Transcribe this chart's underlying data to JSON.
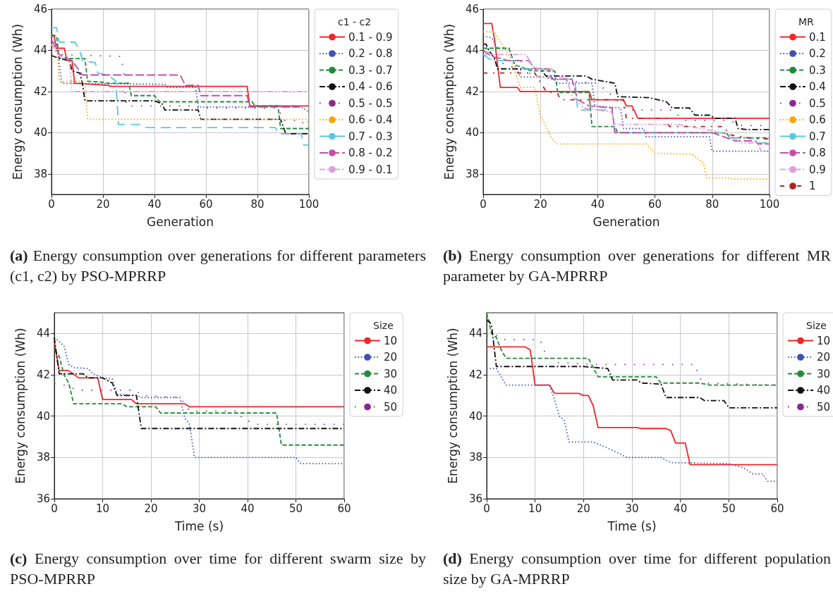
{
  "chart_data": [
    {
      "type": "line",
      "xlabel": "Generation",
      "ylabel": "Energy consumption (Wh)",
      "legend_title": "c1 - c2",
      "xlim": [
        0,
        100
      ],
      "ylim": [
        37,
        46
      ],
      "xticks": [
        0,
        20,
        40,
        60,
        80,
        100
      ],
      "yticks": [
        38,
        40,
        42,
        44,
        46
      ],
      "grid": true,
      "legend": "right",
      "marker": "none",
      "annotations": [
        "(a) Energy consumption over generations for different parameters (c1, c2) by PSO-MPRRP"
      ],
      "series": [
        {
          "name": "0.1 - 0.9",
          "color": "#f0262a",
          "line_style": "solid",
          "x": [
            0,
            1,
            2,
            5,
            6,
            8,
            9,
            22,
            23,
            76,
            77,
            100
          ],
          "values": [
            44.7,
            44.7,
            44.1,
            44.1,
            43.5,
            43.5,
            42.4,
            42.3,
            42.25,
            42.25,
            41.3,
            41.3
          ]
        },
        {
          "name": "0.2 - 0.8",
          "color": "#3f51b5",
          "line_style": "dotted",
          "x": [
            0,
            2,
            4,
            44,
            45,
            56,
            57,
            97,
            100
          ],
          "values": [
            44.5,
            44.3,
            42.4,
            42.35,
            42.2,
            42.2,
            41.25,
            41.25,
            41.0
          ]
        },
        {
          "name": "0.3 - 0.7",
          "color": "#228b3a",
          "line_style": "dashed",
          "x": [
            0,
            2,
            3,
            13,
            14,
            20,
            22,
            30,
            31,
            40,
            42,
            78,
            79,
            88,
            89,
            100
          ],
          "values": [
            44.75,
            44.7,
            43.6,
            43.6,
            42.5,
            42.45,
            42.4,
            42.4,
            41.8,
            41.8,
            41.5,
            41.5,
            41.3,
            41.3,
            40.2,
            40.2
          ]
        },
        {
          "name": "0.4 - 0.6",
          "color": "#111111",
          "line_style": "dashdot",
          "x": [
            0,
            3,
            7,
            8,
            11,
            12,
            13,
            40,
            43,
            44,
            57,
            58,
            89,
            91,
            100
          ],
          "values": [
            43.75,
            43.6,
            43.5,
            43.0,
            42.9,
            42.4,
            41.55,
            41.55,
            41.4,
            41.1,
            41.1,
            40.65,
            40.65,
            39.95,
            39.95
          ]
        },
        {
          "name": "0.5 - 0.5",
          "color": "#8b2a8b",
          "line_style": "loosely dotted",
          "x": [
            0,
            3,
            27,
            28,
            29,
            56,
            57,
            88,
            90,
            97,
            98,
            100
          ],
          "values": [
            44.5,
            43.8,
            43.7,
            43.0,
            41.3,
            41.3,
            41.2,
            41.2,
            40.6,
            40.6,
            40.4,
            40.4
          ]
        },
        {
          "name": "0.6 - 0.4",
          "color": "#ffa500",
          "line_style": "dotted",
          "x": [
            0,
            2,
            3,
            12,
            13,
            14,
            99,
            100
          ],
          "values": [
            44.3,
            44.2,
            42.5,
            42.5,
            42.3,
            40.65,
            40.65,
            40.3
          ]
        },
        {
          "name": "0.7 - 0.3",
          "color": "#5bc8dc",
          "line_style": "long dashed",
          "x": [
            0,
            2,
            3,
            9,
            11,
            12,
            17,
            18,
            22,
            25,
            26,
            35,
            37,
            87,
            88,
            97,
            98,
            100
          ],
          "values": [
            45.1,
            45.1,
            44.4,
            44.4,
            44.0,
            43.5,
            43.4,
            42.9,
            42.8,
            42.5,
            40.4,
            40.4,
            40.25,
            40.25,
            39.95,
            39.95,
            39.4,
            39.4
          ]
        },
        {
          "name": "0.8 - 0.2",
          "color": "#c050a8",
          "line_style": "loosely dashed",
          "x": [
            0,
            3,
            8,
            12,
            50,
            52,
            57,
            58,
            70,
            76,
            77,
            96
          ],
          "values": [
            44.5,
            43.8,
            43.5,
            42.8,
            42.8,
            42.3,
            42.3,
            41.8,
            41.8,
            41.8,
            41.25,
            41.25
          ]
        },
        {
          "name": "0.9 - 0.1",
          "color": "#dda0dd",
          "line_style": "dashdotdot",
          "x": [
            0,
            3,
            7,
            8,
            100
          ],
          "values": [
            44.3,
            43.7,
            43.5,
            42.0,
            42.0
          ]
        }
      ]
    },
    {
      "type": "line",
      "xlabel": "Generation",
      "ylabel": "Energy consumption (Wh)",
      "legend_title": "MR",
      "xlim": [
        0,
        100
      ],
      "ylim": [
        37,
        46
      ],
      "xticks": [
        0,
        20,
        40,
        60,
        80,
        100
      ],
      "yticks": [
        38,
        40,
        42,
        44,
        46
      ],
      "grid": true,
      "legend": "right",
      "marker": "none",
      "annotations": [
        "(b) Energy consumption over generations for different MR parameter by GA-MPRRP"
      ],
      "series": [
        {
          "name": "0.1",
          "color": "#f0262a",
          "line_style": "solid",
          "x": [
            0,
            3,
            4,
            6,
            12,
            13,
            37,
            38,
            49,
            50,
            52,
            54,
            100
          ],
          "values": [
            45.3,
            45.3,
            44.5,
            42.2,
            42.2,
            42.0,
            42.0,
            41.6,
            41.6,
            41.3,
            41.3,
            40.7,
            40.7
          ]
        },
        {
          "name": "0.2",
          "color": "#3f51b5",
          "line_style": "dotted",
          "x": [
            0,
            3,
            5,
            9,
            11,
            13,
            24,
            26,
            38,
            39,
            48,
            49,
            56,
            57,
            79,
            80,
            100
          ],
          "values": [
            44.7,
            44.6,
            44.1,
            44.1,
            43.3,
            42.7,
            42.7,
            42.4,
            42.4,
            41.3,
            41.2,
            40.2,
            40.2,
            39.8,
            39.8,
            39.1,
            39.1
          ]
        },
        {
          "name": "0.3",
          "color": "#228b3a",
          "line_style": "dashed",
          "x": [
            0,
            9,
            11,
            17,
            25,
            26,
            37,
            38,
            46,
            47,
            85,
            86,
            100
          ],
          "values": [
            44.1,
            44.1,
            43.3,
            43.0,
            43.0,
            41.95,
            41.95,
            40.3,
            40.3,
            40.0,
            40.0,
            39.75,
            39.75
          ]
        },
        {
          "name": "0.4",
          "color": "#111111",
          "line_style": "dashdot",
          "x": [
            0,
            1,
            2,
            4,
            5,
            20,
            22,
            36,
            38,
            46,
            47,
            58,
            64,
            66,
            72,
            74,
            79,
            81,
            88,
            89,
            92,
            100
          ],
          "values": [
            44.3,
            44.3,
            44.0,
            43.6,
            43.1,
            43.1,
            42.75,
            42.75,
            42.6,
            42.4,
            41.75,
            41.7,
            41.5,
            41.2,
            41.2,
            40.85,
            40.85,
            40.7,
            40.7,
            40.2,
            40.15,
            40.15
          ]
        },
        {
          "name": "0.5",
          "color": "#8b2a8b",
          "line_style": "loosely dotted",
          "x": [
            0,
            3,
            10,
            20,
            30,
            40,
            45,
            50,
            66,
            70,
            86,
            90,
            100
          ],
          "values": [
            44.3,
            43.6,
            43.2,
            42.7,
            42.5,
            42.4,
            41.8,
            41.1,
            41.1,
            40.6,
            40.6,
            40.35,
            40.35
          ]
        },
        {
          "name": "0.6",
          "color": "#ffa500",
          "line_style": "dotted",
          "x": [
            0,
            4,
            6,
            8,
            10,
            12,
            13,
            18,
            20,
            22,
            24,
            26,
            57,
            60,
            73,
            77,
            78,
            86,
            87,
            100
          ],
          "values": [
            44.9,
            44.9,
            44.4,
            44.0,
            43.4,
            42.6,
            42.2,
            42.2,
            40.8,
            40.3,
            39.7,
            39.45,
            39.45,
            39.0,
            38.95,
            38.5,
            37.8,
            37.8,
            37.75,
            37.75
          ]
        },
        {
          "name": "0.7",
          "color": "#5bc8dc",
          "line_style": "long dashed",
          "x": [
            0,
            2,
            4,
            13,
            14,
            22,
            24,
            32,
            33,
            45,
            46,
            84,
            85,
            94,
            96,
            100
          ],
          "values": [
            43.8,
            43.6,
            43.5,
            43.5,
            43.1,
            43.1,
            42.6,
            42.6,
            41.1,
            41.1,
            40.0,
            40.0,
            39.75,
            39.75,
            39.5,
            39.5
          ]
        },
        {
          "name": "0.8",
          "color": "#c050a8",
          "line_style": "loosely dashed",
          "x": [
            0,
            3,
            9,
            16,
            18,
            23,
            24,
            31,
            33,
            37,
            45,
            46,
            80,
            84,
            88,
            95,
            96,
            100
          ],
          "values": [
            44.0,
            43.7,
            43.5,
            43.5,
            43.1,
            43.1,
            42.6,
            42.6,
            41.6,
            41.3,
            41.2,
            40.0,
            40.0,
            39.8,
            39.6,
            39.6,
            39.45,
            39.45
          ]
        },
        {
          "name": "0.9",
          "color": "#dda0dd",
          "line_style": "dashdotdot",
          "x": [
            0,
            15,
            17,
            19,
            24,
            25,
            29,
            31,
            35,
            45,
            46,
            68,
            72,
            80,
            86,
            90,
            96,
            97,
            100
          ],
          "values": [
            43.8,
            43.8,
            43.3,
            43.1,
            43.1,
            42.7,
            42.7,
            41.8,
            41.2,
            41.0,
            40.4,
            40.4,
            40.3,
            40.1,
            39.9,
            39.5,
            39.5,
            39.1,
            39.1
          ]
        },
        {
          "name": "1",
          "color": "#b22222",
          "line_style": "loosely dashdotted",
          "x": [
            0,
            18,
            22,
            26,
            27,
            49,
            50,
            64,
            65,
            84,
            86,
            95,
            100
          ],
          "values": [
            42.9,
            42.9,
            42.0,
            41.9,
            41.6,
            41.6,
            40.7,
            40.7,
            40.3,
            40.3,
            39.9,
            39.7,
            39.7
          ]
        }
      ]
    },
    {
      "type": "line",
      "xlabel": "Time (s)",
      "ylabel": "Energy consumption (Wh)",
      "legend_title": "Size",
      "xlim": [
        0,
        60
      ],
      "ylim": [
        36,
        45
      ],
      "xticks": [
        0,
        10,
        20,
        30,
        40,
        50,
        60
      ],
      "yticks": [
        36,
        38,
        40,
        42,
        44
      ],
      "grid": true,
      "legend": "right",
      "marker": "none",
      "annotations": [
        "(c) Energy consumption over time for different swarm size by PSO-MPRRP"
      ],
      "series": [
        {
          "name": "10",
          "color": "#f0262a",
          "line_style": "solid",
          "x": [
            0,
            1,
            3,
            5,
            9,
            10,
            16,
            17,
            27,
            28,
            60
          ],
          "values": [
            43.6,
            42.2,
            42.2,
            41.85,
            41.85,
            40.8,
            40.8,
            40.6,
            40.6,
            40.45,
            40.45
          ]
        },
        {
          "name": "20",
          "color": "#3f51b5",
          "line_style": "dotted",
          "x": [
            0,
            2,
            3,
            4,
            7,
            8,
            10,
            12,
            13,
            17,
            18,
            26,
            27,
            28,
            29,
            50,
            51,
            60
          ],
          "values": [
            43.8,
            43.4,
            42.5,
            42.35,
            42.3,
            42.05,
            41.85,
            41.8,
            41.05,
            41.0,
            40.9,
            40.9,
            39.9,
            39.6,
            38.0,
            38.0,
            37.7,
            37.7
          ]
        },
        {
          "name": "30",
          "color": "#228b3a",
          "line_style": "dashed",
          "x": [
            0,
            1,
            2,
            3,
            4,
            14,
            15,
            21,
            22,
            46,
            47,
            60
          ],
          "values": [
            43.2,
            42.9,
            42.0,
            41.6,
            40.6,
            40.6,
            40.45,
            40.45,
            40.15,
            40.15,
            38.6,
            38.6
          ]
        },
        {
          "name": "40",
          "color": "#111111",
          "line_style": "dashdot",
          "x": [
            0,
            1,
            6,
            7,
            10,
            12,
            13,
            17,
            18,
            60
          ],
          "values": [
            43.8,
            42.05,
            42.05,
            41.85,
            41.85,
            41.6,
            41.0,
            41.0,
            39.4,
            39.4
          ]
        },
        {
          "name": "50",
          "color": "#8b2a8b",
          "line_style": "loosely dotted",
          "x": [
            0,
            2,
            5,
            17,
            18,
            26,
            28,
            38,
            39,
            42,
            60
          ],
          "values": [
            41.6,
            41.5,
            41.25,
            41.25,
            41.0,
            40.9,
            40.25,
            40.25,
            39.85,
            39.6,
            39.6
          ]
        }
      ]
    },
    {
      "type": "line",
      "xlabel": "Time (s)",
      "ylabel": "Energy consumption (Wh)",
      "legend_title": "Size",
      "xlim": [
        0,
        60
      ],
      "ylim": [
        36,
        45
      ],
      "xticks": [
        0,
        10,
        20,
        30,
        40,
        50,
        60
      ],
      "yticks": [
        36,
        38,
        40,
        42,
        44
      ],
      "grid": true,
      "legend": "right",
      "marker": "none",
      "annotations": [
        "(d) Energy consumption over time for different population size by GA-MPRRP"
      ],
      "series": [
        {
          "name": "10",
          "color": "#f0262a",
          "line_style": "solid",
          "x": [
            0,
            8,
            9,
            10,
            13,
            14,
            19,
            20,
            21,
            22,
            23,
            31,
            32,
            37,
            38,
            39,
            41,
            42,
            60
          ],
          "values": [
            43.35,
            43.35,
            43.2,
            41.5,
            41.5,
            41.1,
            41.1,
            41.0,
            41.0,
            40.5,
            39.45,
            39.45,
            39.4,
            39.4,
            39.3,
            38.7,
            38.7,
            37.65,
            37.65
          ]
        },
        {
          "name": "20",
          "color": "#3f51b5",
          "line_style": "dotted",
          "x": [
            0,
            2,
            3,
            4,
            13,
            14,
            15,
            16,
            17,
            22,
            25,
            29,
            36,
            38,
            50,
            53,
            55,
            57,
            58,
            60
          ],
          "values": [
            42.3,
            42.3,
            41.9,
            41.5,
            41.5,
            40.8,
            40.0,
            39.8,
            38.75,
            38.75,
            38.45,
            38.0,
            38.0,
            37.75,
            37.7,
            37.5,
            37.2,
            37.2,
            36.85,
            36.85
          ]
        },
        {
          "name": "30",
          "color": "#228b3a",
          "line_style": "dashed",
          "x": [
            0,
            1,
            2,
            3,
            4,
            21,
            23,
            35,
            36,
            44,
            46,
            60
          ],
          "values": [
            45.0,
            44.0,
            43.8,
            43.2,
            42.8,
            42.8,
            41.9,
            41.9,
            41.6,
            41.6,
            41.5,
            41.5
          ]
        },
        {
          "name": "40",
          "color": "#111111",
          "line_style": "dashdot",
          "x": [
            0,
            0.5,
            1,
            2,
            20,
            25,
            26,
            31,
            32,
            36,
            37,
            44,
            45,
            49,
            50,
            60
          ],
          "values": [
            44.6,
            44.6,
            44.4,
            42.4,
            42.4,
            42.3,
            41.75,
            41.75,
            41.6,
            41.55,
            40.9,
            40.9,
            40.75,
            40.75,
            40.4,
            40.4
          ]
        },
        {
          "name": "50",
          "color": "#8b2a8b",
          "line_style": "loosely dotted",
          "x": [
            0,
            2,
            3,
            11,
            12,
            14,
            22,
            43,
            44,
            45,
            60
          ],
          "values": [
            43.9,
            43.9,
            43.7,
            43.7,
            43.1,
            42.6,
            42.5,
            42.5,
            41.85,
            41.6,
            41.5
          ]
        }
      ]
    }
  ]
}
